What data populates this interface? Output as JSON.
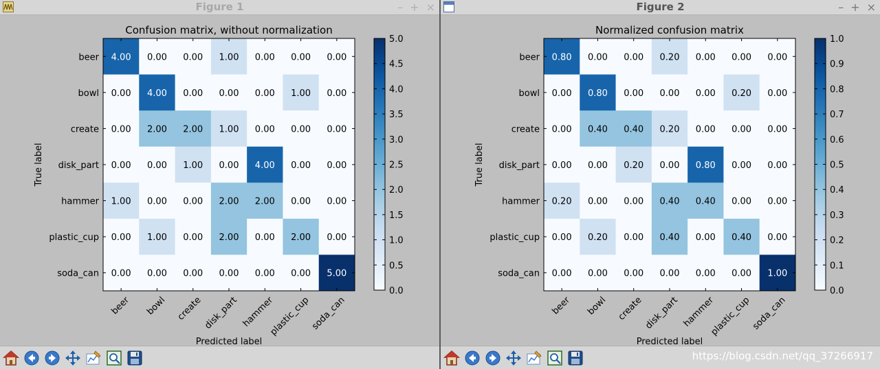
{
  "windows": [
    {
      "title": "Figure 1",
      "chart_title": "Confusion matrix, without normalization",
      "fmt_decimals": 2,
      "vmax": 5,
      "colorbar_ticks": [
        "0.0",
        "0.5",
        "1.0",
        "1.5",
        "2.0",
        "2.5",
        "3.0",
        "3.5",
        "4.0",
        "4.5",
        "5.0"
      ],
      "colorbar_tick_values": [
        0,
        0.5,
        1,
        1.5,
        2,
        2.5,
        3,
        3.5,
        4,
        4.5,
        5
      ]
    },
    {
      "title": "Figure 2",
      "chart_title": "Normalized confusion matrix",
      "fmt_decimals": 2,
      "vmax": 1,
      "colorbar_ticks": [
        "0.0",
        "0.1",
        "0.2",
        "0.3",
        "0.4",
        "0.5",
        "0.6",
        "0.7",
        "0.8",
        "0.9",
        "1.0"
      ],
      "colorbar_tick_values": [
        0,
        0.1,
        0.2,
        0.3,
        0.4,
        0.5,
        0.6,
        0.7,
        0.8,
        0.9,
        1.0
      ]
    }
  ],
  "window_controls": {
    "minimize": "–",
    "maximize": "+",
    "close": "×"
  },
  "toolbar_buttons": [
    "home-icon",
    "back-icon",
    "forward-icon",
    "pan-icon",
    "configure-subplots-icon",
    "zoom-rect-icon",
    "save-icon"
  ],
  "watermark": "https://blog.csdn.net/qq_37266917",
  "chart_data": [
    {
      "type": "heatmap",
      "title": "Confusion matrix, without normalization",
      "xlabel": "Predicted label",
      "ylabel": "True label",
      "x_categories": [
        "beer",
        "bowl",
        "create",
        "disk_part",
        "hammer",
        "plastic_cup",
        "soda_can"
      ],
      "y_categories": [
        "beer",
        "bowl",
        "create",
        "disk_part",
        "hammer",
        "plastic_cup",
        "soda_can"
      ],
      "values": [
        [
          4,
          0,
          0,
          1,
          0,
          0,
          0
        ],
        [
          0,
          4,
          0,
          0,
          0,
          1,
          0
        ],
        [
          0,
          2,
          2,
          1,
          0,
          0,
          0
        ],
        [
          0,
          0,
          1,
          0,
          4,
          0,
          0
        ],
        [
          1,
          0,
          0,
          2,
          2,
          0,
          0
        ],
        [
          0,
          1,
          0,
          2,
          0,
          2,
          0
        ],
        [
          0,
          0,
          0,
          0,
          0,
          0,
          5
        ]
      ],
      "labels": [
        [
          "4.00",
          "0.00",
          "0.00",
          "1.00",
          "0.00",
          "0.00",
          "0.00"
        ],
        [
          "0.00",
          "4.00",
          "0.00",
          "0.00",
          "0.00",
          "1.00",
          "0.00"
        ],
        [
          "0.00",
          "2.00",
          "2.00",
          "1.00",
          "0.00",
          "0.00",
          "0.00"
        ],
        [
          "0.00",
          "0.00",
          "1.00",
          "0.00",
          "4.00",
          "0.00",
          "0.00"
        ],
        [
          "1.00",
          "0.00",
          "0.00",
          "2.00",
          "2.00",
          "0.00",
          "0.00"
        ],
        [
          "0.00",
          "1.00",
          "0.00",
          "2.00",
          "0.00",
          "2.00",
          "0.00"
        ],
        [
          "0.00",
          "0.00",
          "0.00",
          "0.00",
          "0.00",
          "0.00",
          "5.00"
        ]
      ],
      "colorbar_range": [
        0,
        5
      ],
      "colormap": "Blues"
    },
    {
      "type": "heatmap",
      "title": "Normalized confusion matrix",
      "xlabel": "Predicted label",
      "ylabel": "True label",
      "x_categories": [
        "beer",
        "bowl",
        "create",
        "disk_part",
        "hammer",
        "plastic_cup",
        "soda_can"
      ],
      "y_categories": [
        "beer",
        "bowl",
        "create",
        "disk_part",
        "hammer",
        "plastic_cup",
        "soda_can"
      ],
      "values": [
        [
          0.8,
          0,
          0,
          0.2,
          0,
          0,
          0
        ],
        [
          0,
          0.8,
          0,
          0,
          0,
          0.2,
          0
        ],
        [
          0,
          0.4,
          0.4,
          0.2,
          0,
          0,
          0
        ],
        [
          0,
          0,
          0.2,
          0,
          0.8,
          0,
          0
        ],
        [
          0.2,
          0,
          0,
          0.4,
          0.4,
          0,
          0
        ],
        [
          0,
          0.2,
          0,
          0.4,
          0,
          0.4,
          0
        ],
        [
          0,
          0,
          0,
          0,
          0,
          0,
          1.0
        ]
      ],
      "labels": [
        [
          "0.80",
          "0.00",
          "0.00",
          "0.20",
          "0.00",
          "0.00",
          "0.00"
        ],
        [
          "0.00",
          "0.80",
          "0.00",
          "0.00",
          "0.00",
          "0.20",
          "0.00"
        ],
        [
          "0.00",
          "0.40",
          "0.40",
          "0.20",
          "0.00",
          "0.00",
          "0.00"
        ],
        [
          "0.00",
          "0.00",
          "0.20",
          "0.00",
          "0.80",
          "0.00",
          "0.00"
        ],
        [
          "0.20",
          "0.00",
          "0.00",
          "0.40",
          "0.40",
          "0.00",
          "0.00"
        ],
        [
          "0.00",
          "0.20",
          "0.00",
          "0.40",
          "0.00",
          "0.40",
          "0.00"
        ],
        [
          "0.00",
          "0.00",
          "0.00",
          "0.00",
          "0.00",
          "0.00",
          "1.00"
        ]
      ],
      "colorbar_range": [
        0,
        1
      ],
      "colormap": "Blues"
    }
  ]
}
